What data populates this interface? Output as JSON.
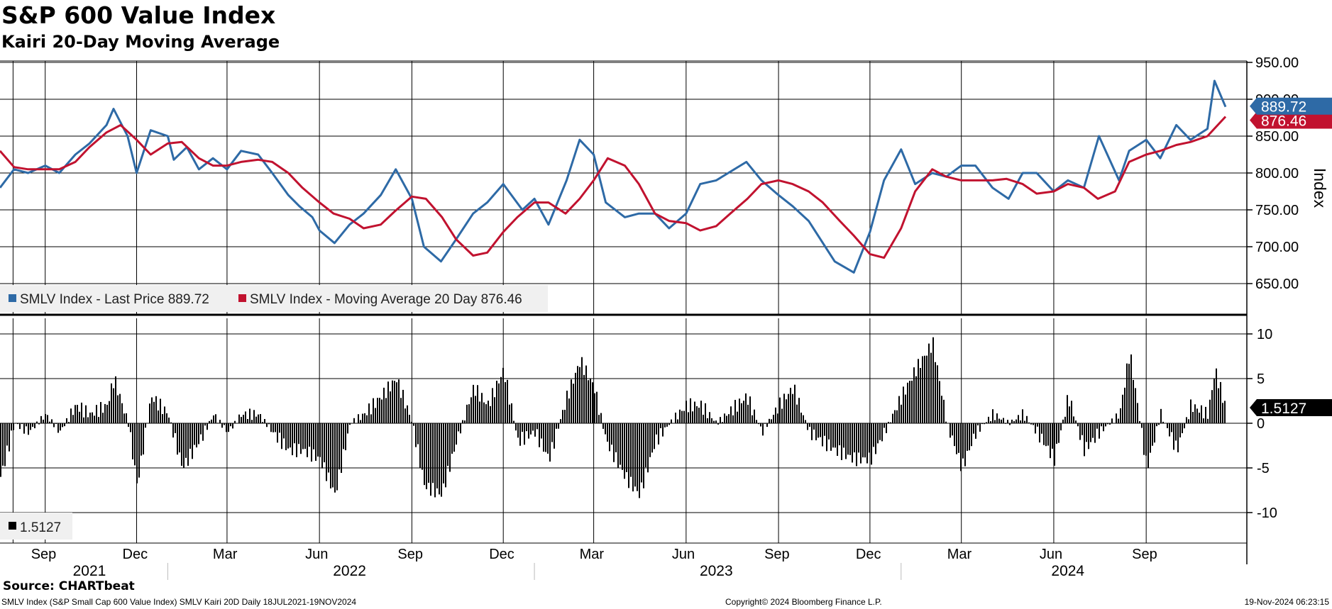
{
  "header": {
    "title": "S&P 600 Value Index",
    "subtitle": "Kairi 20-Day Moving Average"
  },
  "footer": {
    "source": "Source: CHARTbeat",
    "description": "SMLV Index (S&P Small Cap 600 Value Index) SMLV Kairi 20D  Daily 18JUL2021-19NOV2024",
    "copyright": "Copyright© 2024 Bloomberg Finance L.P.",
    "timestamp": "19-Nov-2024 06:23:15"
  },
  "colors": {
    "price": "#2e6aa6",
    "moving_average": "#c1122f",
    "kairi": "#000000",
    "grid": "#000000",
    "legend_bg": "#f0f0f0"
  },
  "chart_data": [
    {
      "type": "line",
      "ylabel": "Index",
      "ylim": [
        625,
        960
      ],
      "ytick_labels": [
        "650.00",
        "700.00",
        "750.00",
        "800.00",
        "850.00",
        "900.00",
        "950.00"
      ],
      "yticks": [
        650,
        700,
        750,
        800,
        850,
        900,
        950
      ],
      "grid": true,
      "legend_position": "bottom-left",
      "series": [
        {
          "name": "SMLV Index - Last Price",
          "legend_label": "SMLV Index - Last Price 889.72",
          "last_value_label": "889.72",
          "x": [
            "2021-07-18",
            "2021-08-01",
            "2021-08-15",
            "2021-09-01",
            "2021-09-15",
            "2021-10-01",
            "2021-10-15",
            "2021-11-01",
            "2021-11-08",
            "2021-11-22",
            "2021-12-01",
            "2021-12-15",
            "2022-01-01",
            "2022-01-07",
            "2022-01-20",
            "2022-02-01",
            "2022-02-15",
            "2022-03-01",
            "2022-03-15",
            "2022-04-01",
            "2022-04-15",
            "2022-05-01",
            "2022-05-12",
            "2022-05-25",
            "2022-06-01",
            "2022-06-16",
            "2022-07-01",
            "2022-07-15",
            "2022-08-01",
            "2022-08-16",
            "2022-09-01",
            "2022-09-13",
            "2022-09-30",
            "2022-10-15",
            "2022-11-01",
            "2022-11-15",
            "2022-12-01",
            "2022-12-20",
            "2023-01-01",
            "2023-01-15",
            "2023-02-02",
            "2023-02-15",
            "2023-03-01",
            "2023-03-13",
            "2023-04-01",
            "2023-04-15",
            "2023-05-01",
            "2023-05-15",
            "2023-06-01",
            "2023-06-15",
            "2023-07-01",
            "2023-07-31",
            "2023-08-15",
            "2023-09-01",
            "2023-09-15",
            "2023-10-01",
            "2023-10-27",
            "2023-11-15",
            "2023-12-01",
            "2023-12-15",
            "2024-01-01",
            "2024-01-15",
            "2024-02-01",
            "2024-02-15",
            "2024-03-01",
            "2024-03-15",
            "2024-04-01",
            "2024-04-17",
            "2024-05-01",
            "2024-05-15",
            "2024-06-01",
            "2024-06-15",
            "2024-07-01",
            "2024-07-16",
            "2024-08-05",
            "2024-08-15",
            "2024-09-01",
            "2024-09-15",
            "2024-10-01",
            "2024-10-15",
            "2024-11-01",
            "2024-11-08",
            "2024-11-19"
          ],
          "values": [
            780,
            805,
            800,
            810,
            800,
            825,
            840,
            865,
            887,
            850,
            800,
            858,
            850,
            818,
            835,
            805,
            820,
            805,
            830,
            825,
            800,
            770,
            755,
            740,
            722,
            705,
            730,
            745,
            770,
            805,
            765,
            700,
            680,
            710,
            745,
            760,
            785,
            750,
            765,
            730,
            790,
            845,
            825,
            760,
            740,
            745,
            745,
            725,
            745,
            785,
            790,
            815,
            790,
            770,
            755,
            735,
            680,
            665,
            720,
            790,
            832,
            785,
            800,
            795,
            810,
            810,
            780,
            765,
            800,
            800,
            775,
            790,
            780,
            850,
            790,
            830,
            845,
            820,
            865,
            845,
            860,
            925,
            889.72
          ]
        },
        {
          "name": "SMLV Index - Moving Average 20 Day",
          "legend_label": "SMLV Index - Moving Average 20 Day 876.46",
          "last_value_label": "876.46",
          "x": [
            "2021-07-18",
            "2021-08-01",
            "2021-08-15",
            "2021-09-01",
            "2021-09-15",
            "2021-10-01",
            "2021-10-15",
            "2021-11-01",
            "2021-11-15",
            "2021-12-01",
            "2021-12-15",
            "2022-01-01",
            "2022-01-15",
            "2022-02-01",
            "2022-02-15",
            "2022-03-01",
            "2022-03-15",
            "2022-04-01",
            "2022-04-15",
            "2022-05-01",
            "2022-05-15",
            "2022-06-01",
            "2022-06-15",
            "2022-07-01",
            "2022-07-15",
            "2022-08-01",
            "2022-08-15",
            "2022-09-01",
            "2022-09-15",
            "2022-10-01",
            "2022-10-15",
            "2022-11-01",
            "2022-11-15",
            "2022-12-01",
            "2022-12-15",
            "2023-01-01",
            "2023-01-15",
            "2023-02-01",
            "2023-02-15",
            "2023-03-01",
            "2023-03-15",
            "2023-04-01",
            "2023-04-15",
            "2023-05-01",
            "2023-05-15",
            "2023-06-01",
            "2023-06-15",
            "2023-07-01",
            "2023-07-15",
            "2023-08-01",
            "2023-08-15",
            "2023-09-01",
            "2023-09-15",
            "2023-10-01",
            "2023-10-15",
            "2023-11-01",
            "2023-11-15",
            "2023-12-01",
            "2023-12-15",
            "2024-01-01",
            "2024-01-15",
            "2024-02-01",
            "2024-02-15",
            "2024-03-01",
            "2024-03-15",
            "2024-04-01",
            "2024-04-15",
            "2024-05-01",
            "2024-05-15",
            "2024-06-01",
            "2024-06-15",
            "2024-07-01",
            "2024-07-15",
            "2024-08-01",
            "2024-08-15",
            "2024-09-01",
            "2024-09-15",
            "2024-10-01",
            "2024-10-15",
            "2024-11-01",
            "2024-11-19"
          ],
          "values": [
            830,
            808,
            805,
            805,
            805,
            815,
            835,
            855,
            865,
            845,
            825,
            840,
            842,
            820,
            810,
            810,
            815,
            818,
            815,
            800,
            780,
            760,
            745,
            738,
            725,
            730,
            748,
            768,
            765,
            740,
            710,
            688,
            692,
            720,
            740,
            760,
            760,
            745,
            765,
            790,
            820,
            810,
            785,
            745,
            735,
            732,
            722,
            728,
            745,
            765,
            785,
            790,
            785,
            775,
            760,
            735,
            715,
            690,
            685,
            725,
            775,
            805,
            795,
            790,
            790,
            790,
            792,
            785,
            772,
            775,
            785,
            780,
            765,
            775,
            815,
            825,
            830,
            838,
            842,
            850,
            876.46
          ]
        }
      ],
      "x_ticks": [
        {
          "label": "Sep",
          "date": "2021-09-01"
        },
        {
          "label": "Dec",
          "date": "2021-12-01"
        },
        {
          "label": "Mar",
          "date": "2022-03-01"
        },
        {
          "label": "Jun",
          "date": "2022-06-01"
        },
        {
          "label": "Sep",
          "date": "2022-09-01"
        },
        {
          "label": "Dec",
          "date": "2022-12-01"
        },
        {
          "label": "Mar",
          "date": "2023-03-01"
        },
        {
          "label": "Jun",
          "date": "2023-06-01"
        },
        {
          "label": "Sep",
          "date": "2023-09-01"
        },
        {
          "label": "Dec",
          "date": "2023-12-01"
        },
        {
          "label": "Mar",
          "date": "2024-03-01"
        },
        {
          "label": "Jun",
          "date": "2024-06-01"
        },
        {
          "label": "Sep",
          "date": "2024-09-01"
        }
      ]
    },
    {
      "type": "bar",
      "name": "SMLV Kairi 20D",
      "legend_label": "1.5127",
      "last_value_label": "1.5127",
      "ylim": [
        -13,
        11
      ],
      "yticks": [
        -10,
        -5,
        0,
        5,
        10
      ],
      "ytick_labels": [
        "-10",
        "-5",
        "0",
        "5",
        "10"
      ],
      "grid": true,
      "legend_position": "bottom-left",
      "x": [
        "2021-07-18",
        "2021-08-01",
        "2021-08-15",
        "2021-09-01",
        "2021-09-15",
        "2021-10-01",
        "2021-10-15",
        "2021-11-01",
        "2021-11-08",
        "2021-11-22",
        "2021-12-01",
        "2021-12-15",
        "2022-01-01",
        "2022-01-15",
        "2022-02-01",
        "2022-02-15",
        "2022-03-01",
        "2022-03-15",
        "2022-04-01",
        "2022-04-15",
        "2022-05-01",
        "2022-05-15",
        "2022-06-01",
        "2022-06-16",
        "2022-07-01",
        "2022-07-15",
        "2022-08-01",
        "2022-08-16",
        "2022-09-01",
        "2022-09-13",
        "2022-09-30",
        "2022-10-15",
        "2022-11-01",
        "2022-11-15",
        "2022-12-01",
        "2022-12-15",
        "2023-01-01",
        "2023-01-15",
        "2023-02-02",
        "2023-02-15",
        "2023-03-01",
        "2023-03-13",
        "2023-04-01",
        "2023-04-15",
        "2023-05-01",
        "2023-05-15",
        "2023-06-01",
        "2023-06-15",
        "2023-07-01",
        "2023-07-31",
        "2023-08-15",
        "2023-09-01",
        "2023-09-15",
        "2023-10-01",
        "2023-10-27",
        "2023-11-15",
        "2023-12-01",
        "2023-12-15",
        "2024-01-01",
        "2024-01-15",
        "2024-02-01",
        "2024-02-15",
        "2024-03-01",
        "2024-03-15",
        "2024-04-01",
        "2024-04-17",
        "2024-05-01",
        "2024-05-15",
        "2024-06-01",
        "2024-06-15",
        "2024-07-01",
        "2024-07-16",
        "2024-08-05",
        "2024-08-15",
        "2024-09-01",
        "2024-09-15",
        "2024-10-01",
        "2024-10-15",
        "2024-11-01",
        "2024-11-08",
        "2024-11-19"
      ],
      "values": [
        -6,
        0,
        -1,
        1,
        -1,
        2,
        1,
        2,
        5,
        0,
        -7,
        3,
        1,
        -5,
        -2,
        1,
        -1,
        1,
        1,
        -1,
        -3,
        -3,
        -4,
        -8,
        0,
        1,
        3,
        5,
        0,
        -7,
        -8,
        -2,
        4,
        2,
        6,
        -2,
        -1,
        -4,
        3,
        7,
        4,
        -2,
        -6,
        -8,
        -2,
        0,
        2,
        2,
        0,
        3,
        -1,
        2,
        4,
        -1,
        -3,
        -4,
        -4,
        -1,
        3,
        6,
        9,
        0,
        -5,
        -1,
        1,
        0,
        1,
        -1,
        -4,
        3,
        -3,
        -1,
        1,
        8,
        -5,
        1,
        -3,
        2,
        1,
        6,
        1.5127
      ]
    }
  ]
}
